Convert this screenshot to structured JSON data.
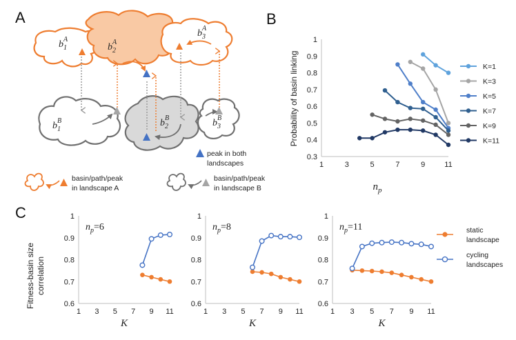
{
  "panels": {
    "A": "A",
    "B": "B",
    "C": "C"
  },
  "panelA": {
    "basin_labels": [
      {
        "base": "b",
        "sub": "1",
        "sup": "A"
      },
      {
        "base": "b",
        "sub": "2",
        "sup": "A"
      },
      {
        "base": "b",
        "sub": "3",
        "sup": "A"
      },
      {
        "base": "b",
        "sub": "1",
        "sup": "B"
      },
      {
        "base": "b",
        "sub": "2",
        "sup": "B"
      },
      {
        "base": "b",
        "sub": "3",
        "sup": "B"
      }
    ],
    "legend": {
      "both": [
        "peak in both",
        "landscapes"
      ],
      "A": [
        "basin/path/peak",
        "in landscape A"
      ],
      "B": [
        "basin/path/peak",
        "in landscape B"
      ]
    },
    "colors": {
      "A": "#ee7d30",
      "A_fill": "#f9c9a4",
      "B": "#6f6f6f",
      "B_fill": "#d6d6d6",
      "both": "#4472c4"
    }
  },
  "chart_data": [
    {
      "id": "B",
      "type": "line",
      "title": "",
      "xlabel": "n_p",
      "ylabel": "Probability of basin linking",
      "xlim": [
        1,
        11
      ],
      "ylim": [
        0.3,
        1
      ],
      "xticks": [
        "1",
        "3",
        "5",
        "7",
        "9",
        "11"
      ],
      "yticks": [
        "0.3",
        "0.4",
        "0.5",
        "0.6",
        "0.7",
        "0.8",
        "0.9",
        "1"
      ],
      "legend_position": "right",
      "series": [
        {
          "name": "K=1",
          "color": "#5ea2dc",
          "x": [
            9,
            10,
            11
          ],
          "values": [
            0.91,
            0.845,
            0.8
          ]
        },
        {
          "name": "K=3",
          "color": "#a5a5a5",
          "x": [
            8,
            9,
            10,
            11
          ],
          "values": [
            0.865,
            0.825,
            0.7,
            0.5
          ]
        },
        {
          "name": "K=5",
          "color": "#4f7fc9",
          "x": [
            7,
            8,
            9,
            10,
            11
          ],
          "values": [
            0.85,
            0.735,
            0.625,
            0.58,
            0.47
          ]
        },
        {
          "name": "K=7",
          "color": "#2f5f8f",
          "x": [
            6,
            7,
            8,
            9,
            10,
            11
          ],
          "values": [
            0.695,
            0.625,
            0.59,
            0.585,
            0.535,
            0.455
          ]
        },
        {
          "name": "K=9",
          "color": "#636363",
          "x": [
            5,
            6,
            7,
            8,
            9,
            10,
            11
          ],
          "values": [
            0.55,
            0.525,
            0.51,
            0.525,
            0.515,
            0.49,
            0.43
          ]
        },
        {
          "name": "K=11",
          "color": "#203864",
          "x": [
            4,
            5,
            6,
            7,
            8,
            9,
            10,
            11
          ],
          "values": [
            0.41,
            0.41,
            0.445,
            0.46,
            0.46,
            0.455,
            0.43,
            0.37
          ]
        }
      ]
    },
    {
      "id": "C1",
      "type": "line",
      "annotation": {
        "n": "n",
        "sub": "p",
        "val": "=6"
      },
      "xlabel": "K",
      "ylabel": "Fitness-basin size correlation",
      "xlim": [
        1,
        11
      ],
      "ylim": [
        0.6,
        1
      ],
      "xticks": [
        "1",
        "3",
        "5",
        "7",
        "9",
        "11"
      ],
      "yticks": [
        "0.6",
        "0.7",
        "0.8",
        "0.9",
        "1"
      ],
      "series": [
        {
          "name": "static landscape",
          "x": [
            8,
            9,
            10,
            11
          ],
          "values": [
            0.73,
            0.72,
            0.71,
            0.7
          ]
        },
        {
          "name": "cycling landscapes",
          "x": [
            8,
            9,
            10,
            11
          ],
          "values": [
            0.775,
            0.895,
            0.912,
            0.915
          ]
        }
      ]
    },
    {
      "id": "C2",
      "type": "line",
      "annotation": {
        "n": "n",
        "sub": "p",
        "val": "=8"
      },
      "xlabel": "K",
      "xlim": [
        1,
        11
      ],
      "ylim": [
        0.6,
        1
      ],
      "xticks": [
        "1",
        "3",
        "5",
        "7",
        "9",
        "11"
      ],
      "yticks": [
        "0.6",
        "0.7",
        "0.8",
        "0.9",
        "1"
      ],
      "series": [
        {
          "name": "static landscape",
          "x": [
            6,
            7,
            8,
            9,
            10,
            11
          ],
          "values": [
            0.745,
            0.742,
            0.735,
            0.72,
            0.71,
            0.7
          ]
        },
        {
          "name": "cycling landscapes",
          "x": [
            6,
            7,
            8,
            9,
            10,
            11
          ],
          "values": [
            0.765,
            0.885,
            0.91,
            0.905,
            0.905,
            0.902
          ]
        }
      ]
    },
    {
      "id": "C3",
      "type": "line",
      "annotation": {
        "n": "n",
        "sub": "p",
        "val": "=11"
      },
      "xlabel": "K",
      "xlim": [
        1,
        11
      ],
      "ylim": [
        0.6,
        1
      ],
      "xticks": [
        "1",
        "3",
        "5",
        "7",
        "9",
        "11"
      ],
      "yticks": [
        "0.6",
        "0.7",
        "0.8",
        "0.9",
        "1"
      ],
      "series": [
        {
          "name": "static landscape",
          "x": [
            3,
            4,
            5,
            6,
            7,
            8,
            9,
            10,
            11
          ],
          "values": [
            0.752,
            0.75,
            0.748,
            0.745,
            0.74,
            0.73,
            0.72,
            0.71,
            0.7
          ]
        },
        {
          "name": "cycling landscapes",
          "x": [
            3,
            4,
            5,
            6,
            7,
            8,
            9,
            10,
            11
          ],
          "values": [
            0.76,
            0.86,
            0.875,
            0.878,
            0.88,
            0.878,
            0.873,
            0.87,
            0.86
          ]
        }
      ]
    }
  ],
  "panelC_legend": {
    "static": {
      "lines": [
        "static",
        "landscape"
      ],
      "color": "#ee7d30"
    },
    "cycling": {
      "lines": [
        "cycling",
        "landscapes"
      ],
      "color": "#4472c4"
    }
  },
  "panelC_ylabel": [
    "Fitness-basin size",
    "correlation"
  ]
}
